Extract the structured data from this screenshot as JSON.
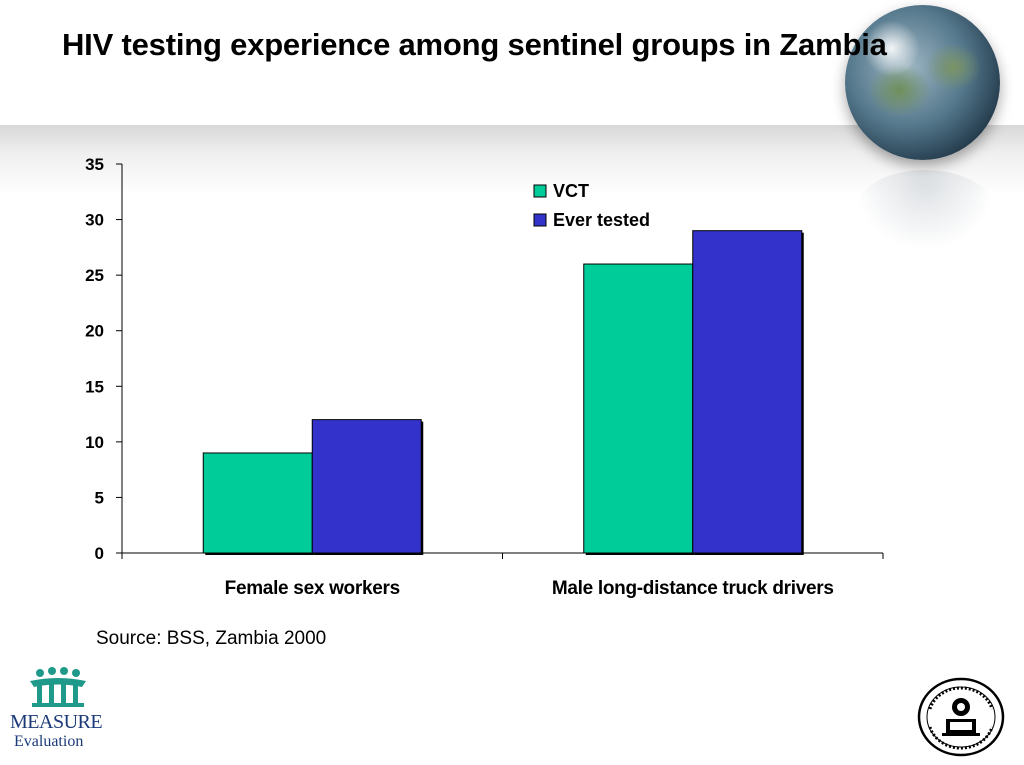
{
  "slide": {
    "title": "HIV testing experience among sentinel groups in Zambia",
    "source": "Source: BSS, Zambia 2000"
  },
  "logos": {
    "measure_line1": "MEASURE",
    "measure_line2": "Evaluation"
  },
  "colors": {
    "vct": "#00cc99",
    "ever_tested": "#3333cc"
  },
  "chart_data": {
    "type": "bar",
    "title": "",
    "xlabel": "",
    "ylabel": "",
    "ylim": [
      0,
      35
    ],
    "yticks": [
      0,
      5,
      10,
      15,
      20,
      25,
      30,
      35
    ],
    "categories": [
      "Female sex workers",
      "Male long-distance truck drivers"
    ],
    "series": [
      {
        "name": "VCT",
        "color": "#00cc99",
        "values": [
          9,
          26
        ]
      },
      {
        "name": "Ever tested",
        "color": "#3333cc",
        "values": [
          12,
          29
        ]
      }
    ],
    "legend": "top-right",
    "grid": false
  }
}
